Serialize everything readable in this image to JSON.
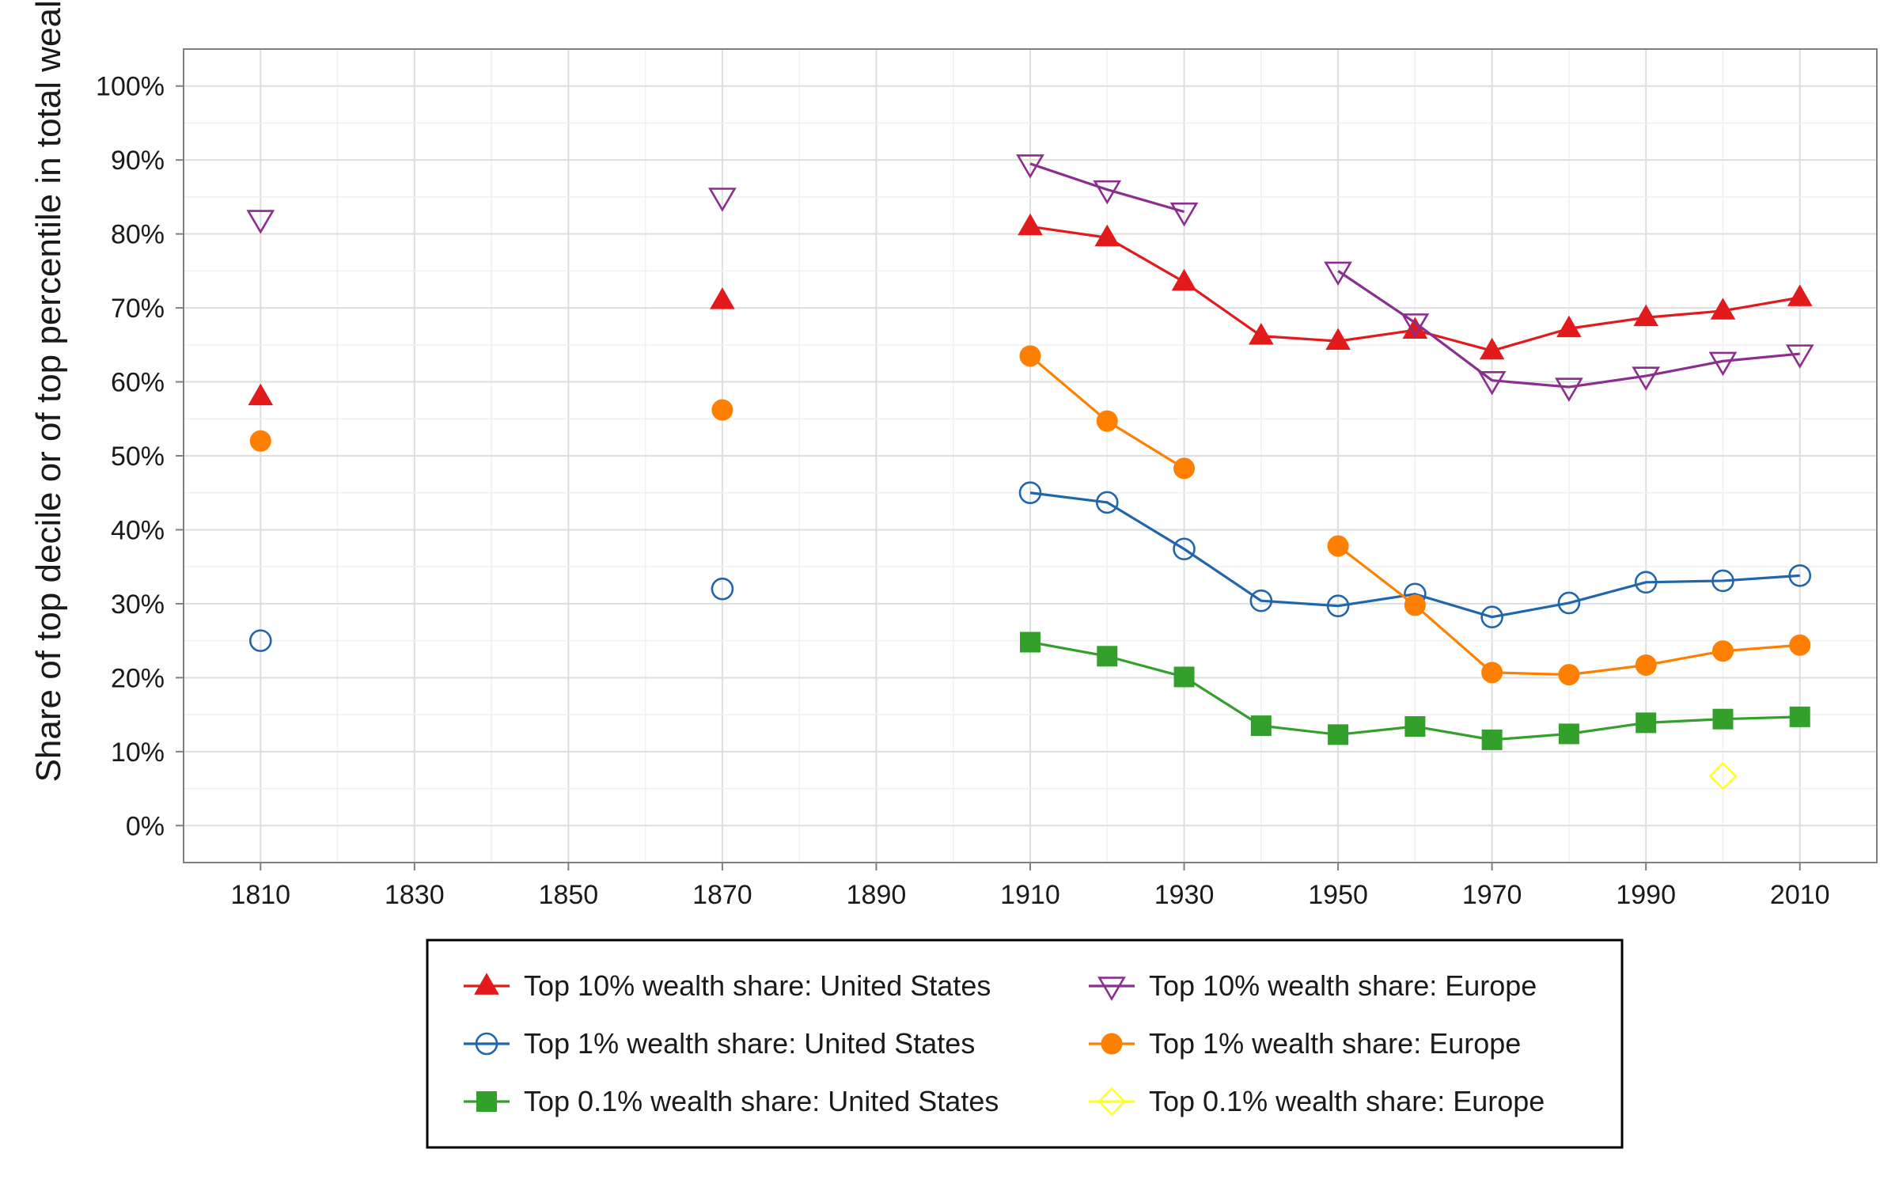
{
  "chart_data": {
    "type": "line",
    "title": "",
    "xlabel": "",
    "ylabel": "Share of top decile or of top percentile in total wealth",
    "xlim": [
      1800,
      2020
    ],
    "ylim": [
      -5,
      105
    ],
    "x_ticks": [
      1810,
      1830,
      1850,
      1870,
      1890,
      1910,
      1930,
      1950,
      1970,
      1990,
      2010
    ],
    "x_tick_labels": [
      "1810",
      "1830",
      "1850",
      "1870",
      "1890",
      "1910",
      "1930",
      "1950",
      "1970",
      "1990",
      "2010"
    ],
    "y_ticks": [
      0,
      10,
      20,
      30,
      40,
      50,
      60,
      70,
      80,
      90,
      100
    ],
    "y_tick_labels": [
      "0%",
      "10%",
      "20%",
      "30%",
      "40%",
      "50%",
      "60%",
      "70%",
      "80%",
      "90%",
      "100%"
    ],
    "grid": true,
    "legend_position": "bottom",
    "series": [
      {
        "name": "Top 10% wealth share: United States",
        "color": "#e31a1c",
        "marker": "triangle-filled",
        "points": [
          [
            1810,
            58
          ],
          [
            1870,
            71
          ],
          [
            1910,
            81
          ],
          [
            1920,
            79.5
          ],
          [
            1930,
            73.5
          ],
          [
            1940,
            66.2
          ],
          [
            1950,
            65.5
          ],
          [
            1960,
            67
          ],
          [
            1970,
            64.2
          ],
          [
            1980,
            67.2
          ],
          [
            1990,
            68.7
          ],
          [
            2000,
            69.6
          ],
          [
            2010,
            71.4
          ]
        ]
      },
      {
        "name": "Top 1% wealth share: United States",
        "color": "#2166ac",
        "marker": "circle-open",
        "points": [
          [
            1810,
            25
          ],
          [
            1870,
            32
          ],
          [
            1910,
            45
          ],
          [
            1920,
            43.7
          ],
          [
            1930,
            37.4
          ],
          [
            1940,
            30.4
          ],
          [
            1950,
            29.7
          ],
          [
            1960,
            31.3
          ],
          [
            1970,
            28.2
          ],
          [
            1980,
            30.1
          ],
          [
            1990,
            32.9
          ],
          [
            2000,
            33.1
          ],
          [
            2010,
            33.8
          ]
        ]
      },
      {
        "name": "Top 0.1% wealth share: United States",
        "color": "#33a02c",
        "marker": "square-filled",
        "points": [
          [
            1910,
            24.8
          ],
          [
            1920,
            22.9
          ],
          [
            1930,
            20.1
          ],
          [
            1940,
            13.5
          ],
          [
            1950,
            12.3
          ],
          [
            1960,
            13.4
          ],
          [
            1970,
            11.6
          ],
          [
            1980,
            12.4
          ],
          [
            1990,
            13.9
          ],
          [
            2000,
            14.4
          ],
          [
            2010,
            14.7
          ]
        ]
      },
      {
        "name": "Top 10% wealth share: Europe",
        "color": "#8b2e8f",
        "marker": "triangle-down-open",
        "points": [
          [
            1810,
            82
          ],
          [
            1870,
            85
          ],
          [
            1910,
            89.5
          ],
          [
            1920,
            86
          ],
          [
            1930,
            83
          ],
          [
            1950,
            75
          ],
          [
            1960,
            68
          ],
          [
            1970,
            60.2
          ],
          [
            1980,
            59.3
          ],
          [
            1990,
            60.8
          ],
          [
            2000,
            62.8
          ],
          [
            2010,
            63.8
          ]
        ]
      },
      {
        "name": "Top 1% wealth share: Europe",
        "color": "#ff7f00",
        "marker": "circle-filled",
        "points": [
          [
            1810,
            52
          ],
          [
            1870,
            56.2
          ],
          [
            1910,
            63.5
          ],
          [
            1920,
            54.7
          ],
          [
            1930,
            48.3
          ],
          [
            1950,
            37.8
          ],
          [
            1960,
            29.8
          ],
          [
            1970,
            20.7
          ],
          [
            1980,
            20.4
          ],
          [
            1990,
            21.7
          ],
          [
            2000,
            23.6
          ],
          [
            2010,
            24.4
          ]
        ]
      },
      {
        "name": "Top 0.1% wealth share: Europe",
        "color": "#ffff33",
        "marker": "diamond-open",
        "points": [
          [
            2000,
            6.7
          ]
        ]
      }
    ],
    "legend_order": [
      0,
      3,
      1,
      4,
      2,
      5
    ]
  }
}
